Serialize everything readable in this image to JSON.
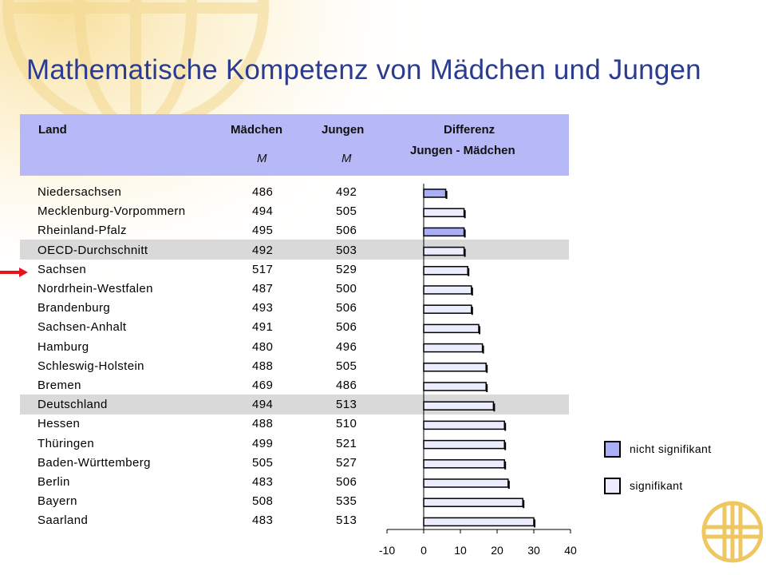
{
  "title": "Mathematische Kompetenz von Mädchen und Jungen",
  "header": {
    "land": "Land",
    "maedchen": "Mädchen",
    "jungen": "Jungen",
    "differenz": "Differenz",
    "differenz_sub": "Jungen - Mädchen",
    "maedchen_unit": "M",
    "jungen_unit": "M"
  },
  "rows": [
    {
      "land": "Niedersachsen",
      "maedchen": "486",
      "jungen": "492"
    },
    {
      "land": "Mecklenburg-Vorpommern",
      "maedchen": "494",
      "jungen": "505"
    },
    {
      "land": "Rheinland-Pfalz",
      "maedchen": "495",
      "jungen": "506"
    },
    {
      "land": "OECD-Durchschnitt",
      "maedchen": "492",
      "jungen": "503"
    },
    {
      "land": "Sachsen",
      "maedchen": "517",
      "jungen": "529"
    },
    {
      "land": "Nordrhein-Westfalen",
      "maedchen": "487",
      "jungen": "500"
    },
    {
      "land": "Brandenburg",
      "maedchen": "493",
      "jungen": "506"
    },
    {
      "land": "Sachsen-Anhalt",
      "maedchen": "491",
      "jungen": "506"
    },
    {
      "land": "Hamburg",
      "maedchen": "480",
      "jungen": "496"
    },
    {
      "land": "Schleswig-Holstein",
      "maedchen": "488",
      "jungen": "505"
    },
    {
      "land": "Bremen",
      "maedchen": "469",
      "jungen": "486"
    },
    {
      "land": "Deutschland",
      "maedchen": "494",
      "jungen": "513"
    },
    {
      "land": "Hessen",
      "maedchen": "488",
      "jungen": "510"
    },
    {
      "land": "Thüringen",
      "maedchen": "499",
      "jungen": "521"
    },
    {
      "land": "Baden-Württemberg",
      "maedchen": "505",
      "jungen": "527"
    },
    {
      "land": "Berlin",
      "maedchen": "483",
      "jungen": "506"
    },
    {
      "land": "Bayern",
      "maedchen": "508",
      "jungen": "535"
    },
    {
      "land": "Saarland",
      "maedchen": "483",
      "jungen": "513"
    }
  ],
  "legend": {
    "nicht_signifikant": "nicht signifikant",
    "signifikant": "signifikant"
  },
  "colors": {
    "title": "#2b3b8f",
    "header_bg": "#b7b8f7",
    "highlight_band": "#d9d9d9",
    "bar_nicht_signifikant": "#a9aef5",
    "bar_signifikant": "#ececff",
    "arrow": "#e8141c"
  },
  "chart_data": {
    "type": "bar",
    "orientation": "horizontal",
    "categories": [
      "Niedersachsen",
      "Mecklenburg-Vorpommern",
      "Rheinland-Pfalz",
      "OECD-Durchschnitt",
      "Sachsen",
      "Nordrhein-Westfalen",
      "Brandenburg",
      "Sachsen-Anhalt",
      "Hamburg",
      "Schleswig-Holstein",
      "Bremen",
      "Deutschland",
      "Hessen",
      "Thüringen",
      "Baden-Württemberg",
      "Berlin",
      "Bayern",
      "Saarland"
    ],
    "values": [
      6,
      11,
      11,
      11,
      12,
      13,
      13,
      15,
      16,
      17,
      17,
      19,
      22,
      22,
      22,
      23,
      27,
      30
    ],
    "significant": [
      false,
      true,
      false,
      true,
      true,
      true,
      true,
      true,
      true,
      true,
      true,
      true,
      true,
      true,
      true,
      true,
      true,
      true
    ],
    "xlim": [
      -10,
      40
    ],
    "xticks": [
      -10,
      0,
      10,
      20,
      30,
      40
    ],
    "grid": false,
    "legend": "right"
  }
}
